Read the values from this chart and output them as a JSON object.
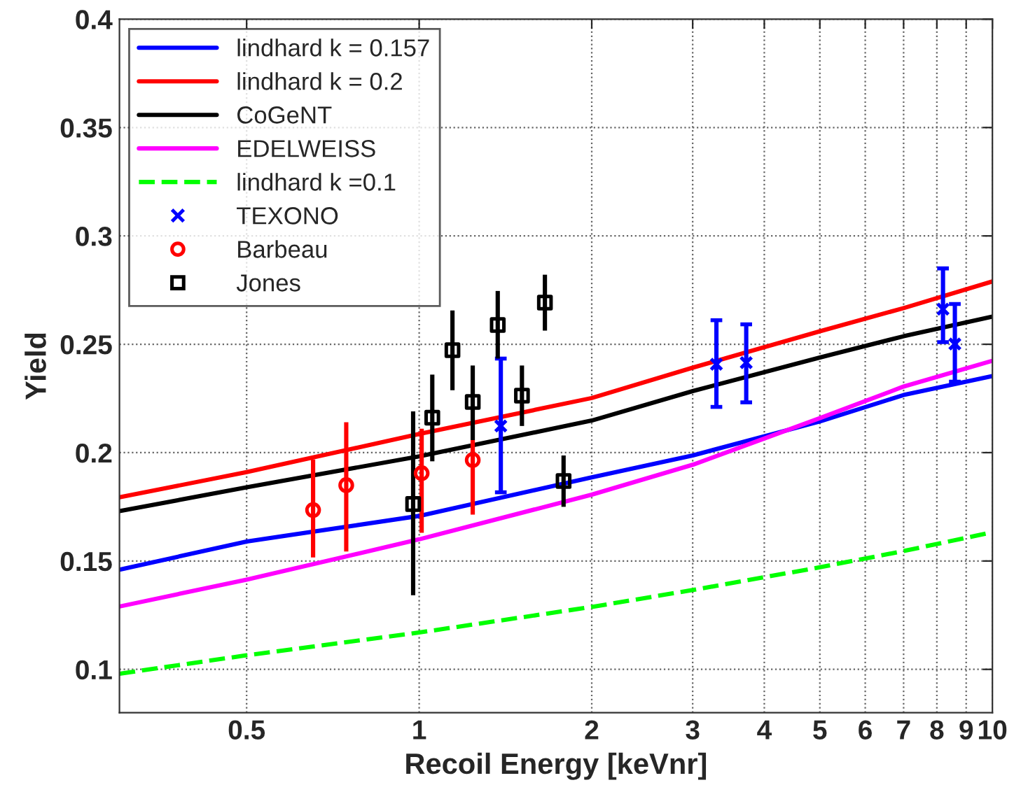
{
  "chart_data": {
    "type": "line",
    "xlabel": "Recoil Energy [keVnr]",
    "ylabel": "Yield",
    "log": "x",
    "xlim": [
      0.3,
      10
    ],
    "xticks": [
      0.5,
      1,
      2,
      3,
      4,
      5,
      6,
      7,
      8,
      9,
      10
    ],
    "ylim": [
      0.08,
      0.4
    ],
    "yticks": [
      0.1,
      0.15,
      0.2,
      0.25,
      0.3,
      0.35,
      0.4
    ],
    "grid": true,
    "legend": "top left",
    "series": [
      {
        "name": "lindhard k = 0.157",
        "color": "#0000ff",
        "line_style": "solid",
        "marker": "none",
        "x": [
          0.3,
          0.5,
          1,
          2,
          3,
          5,
          7,
          10
        ],
        "values": [
          0.146,
          0.159,
          0.1708,
          0.1886,
          0.1987,
          0.2144,
          0.2266,
          0.2353
        ]
      },
      {
        "name": "lindhard k = 0.2",
        "color": "#ff0000",
        "line_style": "solid",
        "marker": "none",
        "x": [
          0.3,
          0.5,
          1,
          2,
          3,
          5,
          7,
          10
        ],
        "values": [
          0.1794,
          0.191,
          0.2086,
          0.2252,
          0.2392,
          0.256,
          0.2667,
          0.279
        ]
      },
      {
        "name": "CoGeNT",
        "color": "#000000",
        "line_style": "solid",
        "marker": "none",
        "x": [
          0.3,
          0.5,
          1,
          2,
          3,
          5,
          7,
          10
        ],
        "values": [
          0.173,
          0.184,
          0.1983,
          0.2148,
          0.2284,
          0.2439,
          0.2537,
          0.2628
        ]
      },
      {
        "name": "EDELWEISS",
        "color": "#ff00ff",
        "line_style": "solid",
        "marker": "none",
        "x": [
          0.3,
          0.5,
          1,
          2,
          3,
          5,
          7,
          10
        ],
        "values": [
          0.129,
          0.1414,
          0.16,
          0.1806,
          0.1944,
          0.2159,
          0.2305,
          0.2424
        ]
      },
      {
        "name": "lindhard k =0.1",
        "color": "#00ff00",
        "line_style": "dashed",
        "marker": "none",
        "x": [
          0.3,
          0.5,
          1,
          2,
          3,
          5,
          7,
          10
        ],
        "values": [
          0.098,
          0.1065,
          0.117,
          0.1288,
          0.1366,
          0.1471,
          0.1546,
          0.1633
        ]
      },
      {
        "name": "TEXONO",
        "type": "scatter",
        "color": "#0000ff",
        "marker": "cross",
        "x": [
          1.388,
          3.3,
          3.72,
          8.2,
          8.6
        ],
        "values": [
          0.2123,
          0.2408,
          0.2415,
          0.2662,
          0.2501
        ],
        "errors": [
          [
            0.1817,
            0.2434
          ],
          [
            0.2211,
            0.2611
          ],
          [
            0.2232,
            0.2592
          ],
          [
            0.251,
            0.285
          ],
          [
            0.2327,
            0.2686
          ]
        ]
      },
      {
        "name": "Barbeau",
        "type": "scatter",
        "color": "#ff0000",
        "marker": "circle",
        "x": [
          0.653,
          0.746,
          1.01,
          1.24
        ],
        "values": [
          0.1735,
          0.185,
          0.1905,
          0.1966
        ],
        "errors": [
          [
            0.1516,
            0.1968
          ],
          [
            0.1544,
            0.214
          ],
          [
            0.163,
            0.211
          ],
          [
            0.1714,
            0.2058
          ]
        ]
      },
      {
        "name": "Jones",
        "type": "scatter",
        "color": "#000000",
        "marker": "square",
        "x": [
          0.976,
          1.054,
          1.143,
          1.24,
          1.371,
          1.511,
          1.657,
          1.786
        ],
        "values": [
          0.1763,
          0.2161,
          0.2473,
          0.2234,
          0.2589,
          0.2263,
          0.2692,
          0.1869
        ],
        "errors": [
          [
            0.1342,
            0.219
          ],
          [
            0.196,
            0.236
          ],
          [
            0.2288,
            0.2656
          ],
          [
            0.2058,
            0.2402
          ],
          [
            0.2434,
            0.2746
          ],
          [
            0.2123,
            0.2402
          ],
          [
            0.2563,
            0.2821
          ],
          [
            0.175,
            0.1987
          ]
        ]
      }
    ]
  }
}
